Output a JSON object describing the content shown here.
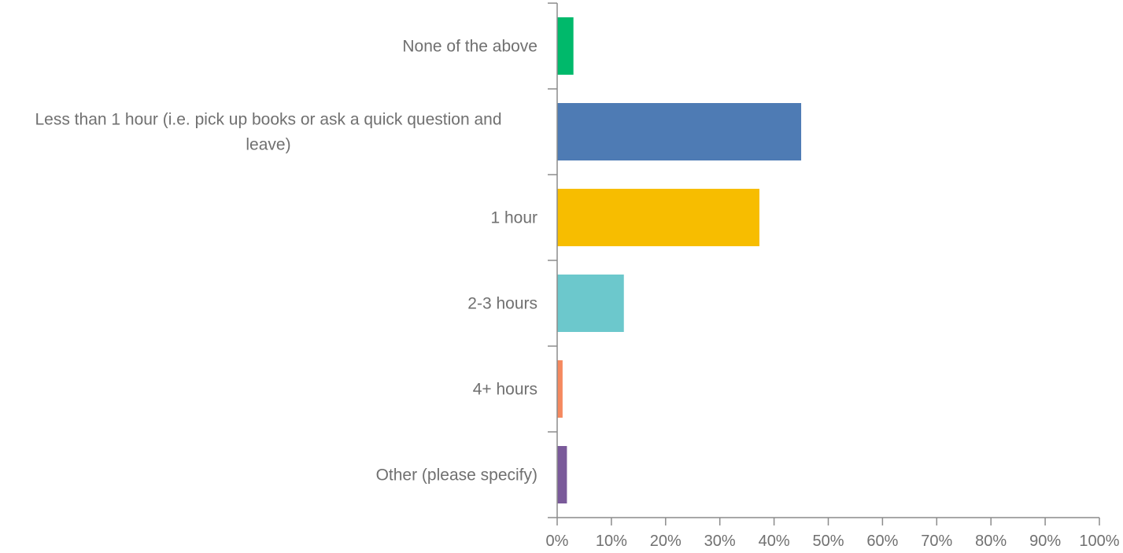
{
  "chart_data": {
    "type": "bar",
    "orientation": "horizontal",
    "categories": [
      "None of the above",
      "Less than 1 hour (i.e. pick up books or ask a quick question and leave)",
      "1 hour",
      "2-3 hours",
      "4+ hours",
      "Other (please specify)"
    ],
    "category_label_lines": [
      [
        "None of the above"
      ],
      [
        "Less than 1 hour (i.e. pick up books or ask a quick question and",
        "leave)"
      ],
      [
        "1 hour"
      ],
      [
        "2-3 hours"
      ],
      [
        "4+ hours"
      ],
      [
        "Other (please specify)"
      ]
    ],
    "values": [
      3,
      45,
      37.3,
      12.3,
      1,
      1.8
    ],
    "colors": [
      "#00b96b",
      "#4e7bb4",
      "#f7bd00",
      "#6cc8cc",
      "#f5895f",
      "#7a5a9a"
    ],
    "xlim": [
      0,
      100
    ],
    "x_ticks": [
      0,
      10,
      20,
      30,
      40,
      50,
      60,
      70,
      80,
      90,
      100
    ],
    "x_tick_labels": [
      "0%",
      "10%",
      "20%",
      "30%",
      "40%",
      "50%",
      "60%",
      "70%",
      "80%",
      "90%",
      "100%"
    ],
    "title": "",
    "xlabel": "",
    "ylabel": "",
    "grid": false,
    "legend": "none"
  }
}
